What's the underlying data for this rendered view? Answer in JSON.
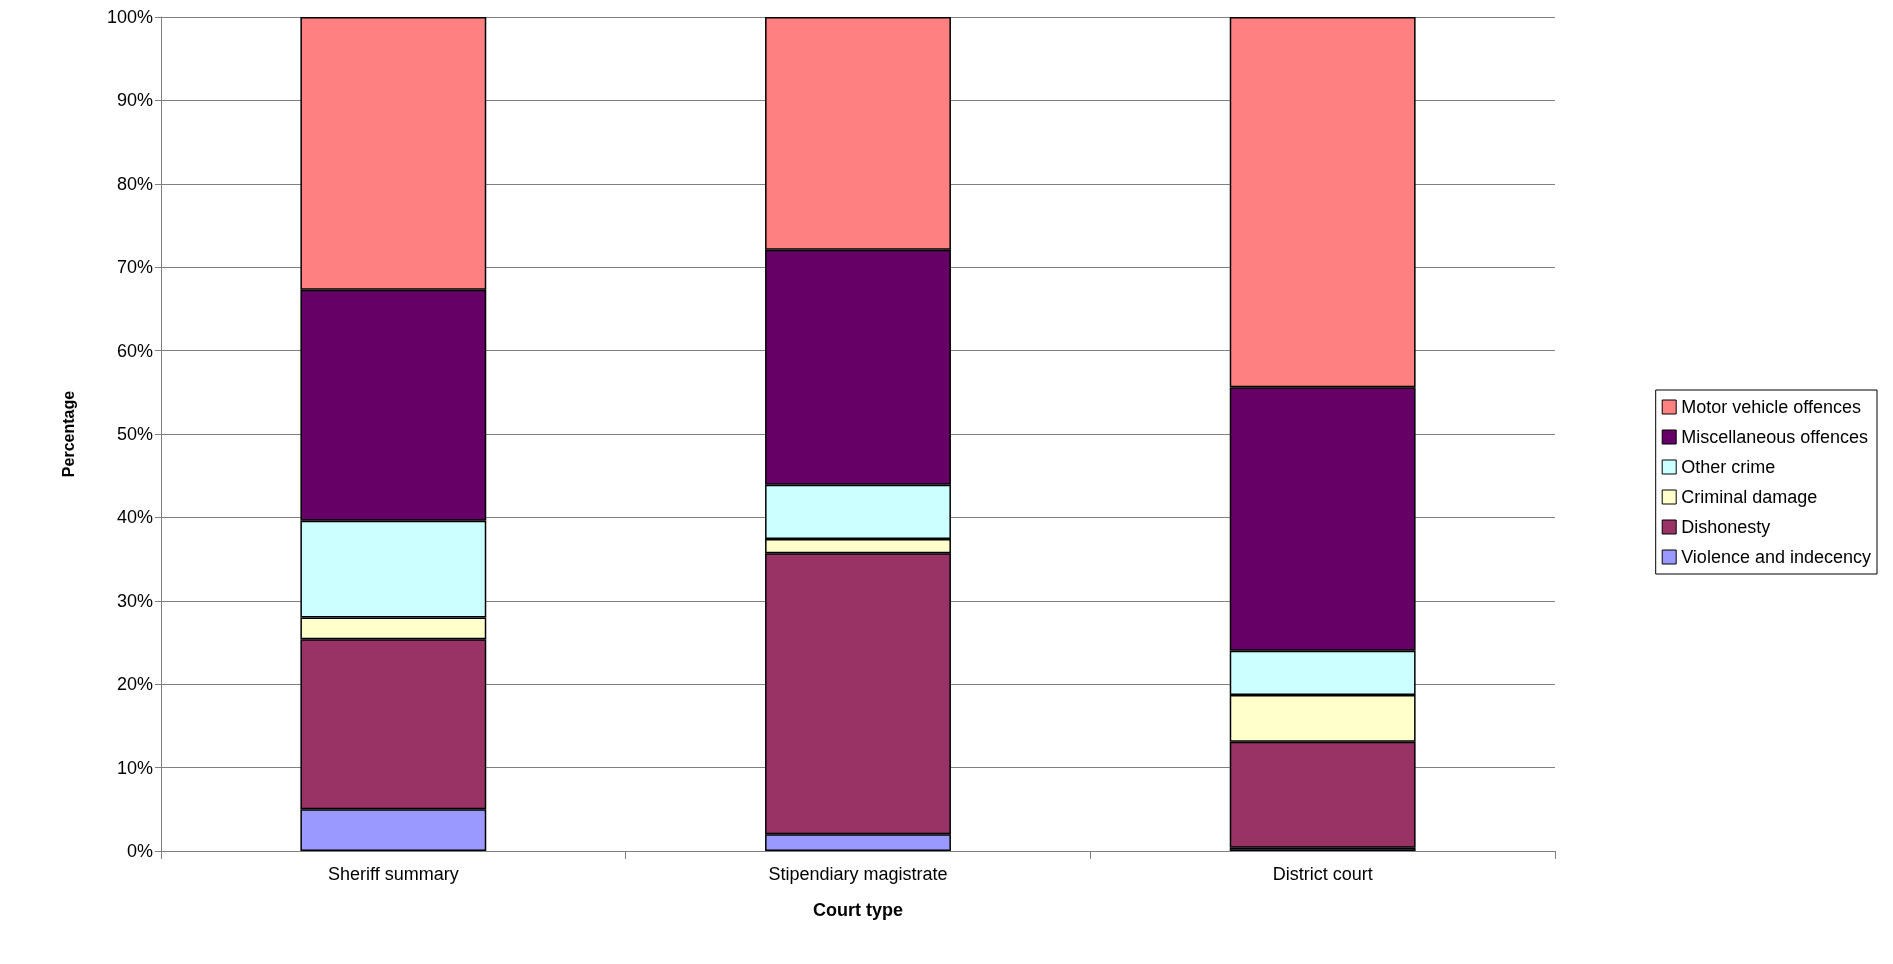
{
  "chart_data": {
    "type": "bar",
    "stacked": true,
    "xlabel": "Court type",
    "ylabel": "Percentage",
    "categories": [
      "Sheriff summary",
      "Stipendiary magistrate",
      "District court"
    ],
    "series": [
      {
        "name": "Violence and indecency",
        "color": "#9999ff",
        "values": [
          5.0,
          2.0,
          0.4
        ]
      },
      {
        "name": "Dishonesty",
        "color": "#993366",
        "values": [
          20.4,
          33.7,
          12.7
        ]
      },
      {
        "name": "Criminal damage",
        "color": "#ffffcc",
        "values": [
          2.6,
          1.7,
          5.6
        ]
      },
      {
        "name": "Other crime",
        "color": "#ccffff",
        "values": [
          11.6,
          6.5,
          5.3
        ]
      },
      {
        "name": "Miscellaneous offences",
        "color": "#660066",
        "values": [
          27.7,
          28.2,
          31.6
        ]
      },
      {
        "name": "Motor vehicle offences",
        "color": "#ff8080",
        "values": [
          32.7,
          27.9,
          44.4
        ]
      }
    ],
    "ylim": [
      0,
      100
    ],
    "yticks": [
      {
        "value": 0,
        "label": "0%"
      },
      {
        "value": 10,
        "label": "10%"
      },
      {
        "value": 20,
        "label": "20%"
      },
      {
        "value": 30,
        "label": "30%"
      },
      {
        "value": 40,
        "label": "40%"
      },
      {
        "value": 50,
        "label": "50%"
      },
      {
        "value": 60,
        "label": "60%"
      },
      {
        "value": 70,
        "label": "70%"
      },
      {
        "value": 80,
        "label": "80%"
      },
      {
        "value": 90,
        "label": "90%"
      },
      {
        "value": 100,
        "label": "100%"
      }
    ],
    "grid": "y",
    "legend": "right"
  }
}
